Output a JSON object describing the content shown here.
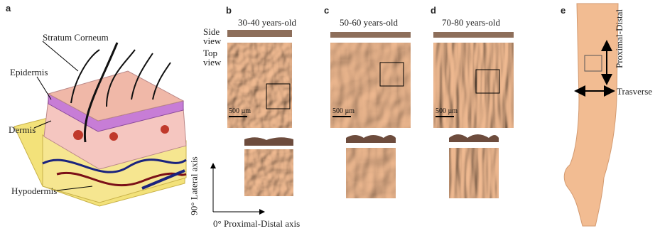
{
  "panel_a": {
    "label": "a",
    "annotations": [
      "Stratum Corneum",
      "Epidermis",
      "Dermis",
      "Hypodermis"
    ]
  },
  "panels": [
    {
      "label": "b",
      "title": "30-40 years-old",
      "scale_bar": "500 µm"
    },
    {
      "label": "c",
      "title": "50-60 years-old",
      "scale_bar": "500 µm"
    },
    {
      "label": "d",
      "title": "70-80 years-old",
      "scale_bar": "500 µm"
    }
  ],
  "view_labels": [
    "Side view",
    "Top view"
  ],
  "axes": {
    "vertical": "90° Lateral axis",
    "horizontal": "0° Proximal-Distal axis"
  },
  "panel_e": {
    "label": "e",
    "vertical_arrow": "Proximal-Distal",
    "horizontal_arrow": "Trasverse"
  }
}
